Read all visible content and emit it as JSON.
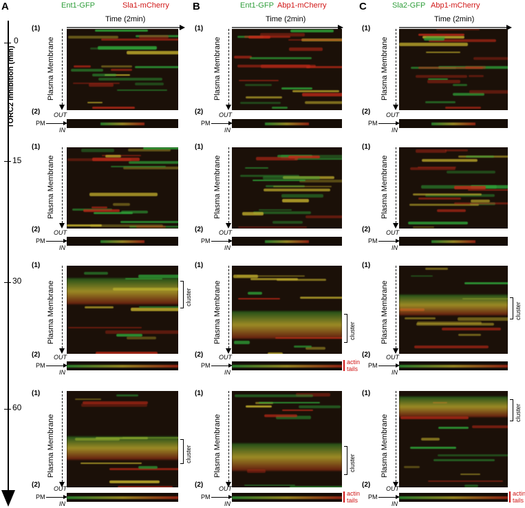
{
  "panels": [
    {
      "letter": "A",
      "green": "Ent1-GFP",
      "red": "Sla1-mCherry"
    },
    {
      "letter": "B",
      "green": "Ent1-GFP",
      "red": "Abp1-mCherry"
    },
    {
      "letter": "C",
      "green": "Sla2-GFP",
      "red": "Abp1-mCherry"
    }
  ],
  "time_axis": "Time (2min)",
  "left_axis_label": "TORC2 Inhibition (min)",
  "timepoints": [
    "0",
    "15",
    "30",
    "60"
  ],
  "sub1": "(1)",
  "sub2": "(2)",
  "pm_label": "Plasma Membrane",
  "pm_short": "PM",
  "out_label": "OUT",
  "in_label": "IN",
  "cluster_label": "cluster",
  "actin_label": "actin tails",
  "colors": {
    "green": "#2e9e3a",
    "red": "#d01616",
    "yellow": "#d8c23a"
  }
}
